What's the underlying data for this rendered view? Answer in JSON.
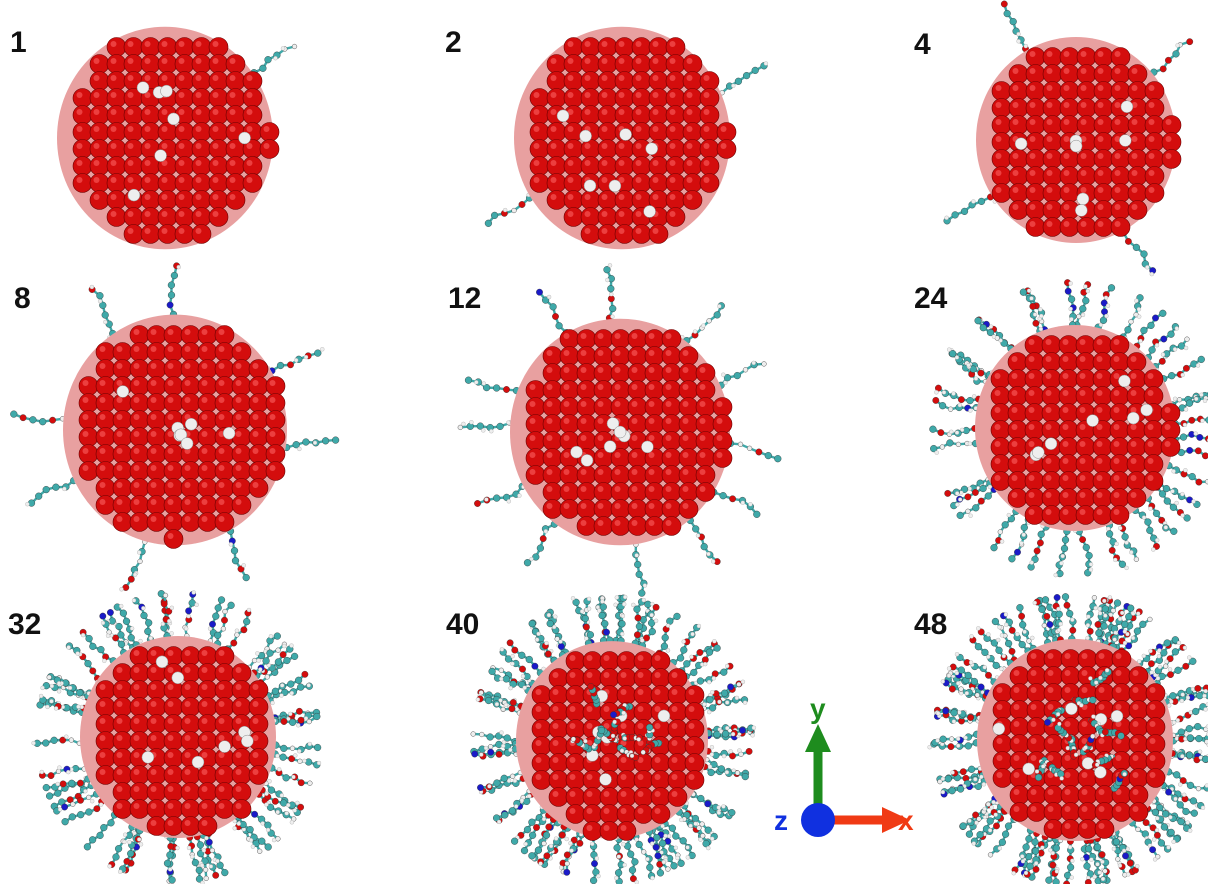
{
  "figure": {
    "panels": [
      {
        "label": "1",
        "ligands": 1
      },
      {
        "label": "2",
        "ligands": 2
      },
      {
        "label": "4",
        "ligands": 4
      },
      {
        "label": "8",
        "ligands": 8
      },
      {
        "label": "12",
        "ligands": 12
      },
      {
        "label": "24",
        "ligands": 24
      },
      {
        "label": "32",
        "ligands": 32
      },
      {
        "label": "40",
        "ligands": 40
      },
      {
        "label": "48",
        "ligands": 48
      }
    ],
    "axes": {
      "y_label": "y",
      "z_label": "z",
      "x_label": "x",
      "y_color": "#1e8c1e",
      "z_color": "#1030e0",
      "x_color": "#f03a14"
    },
    "colors": {
      "oxygen": "#d40d0d",
      "surface": "#e8a0a0",
      "hydrogen": "#eeeeee",
      "carbon": "#3fa9a9",
      "nitrogen": "#1a1ac8"
    }
  }
}
